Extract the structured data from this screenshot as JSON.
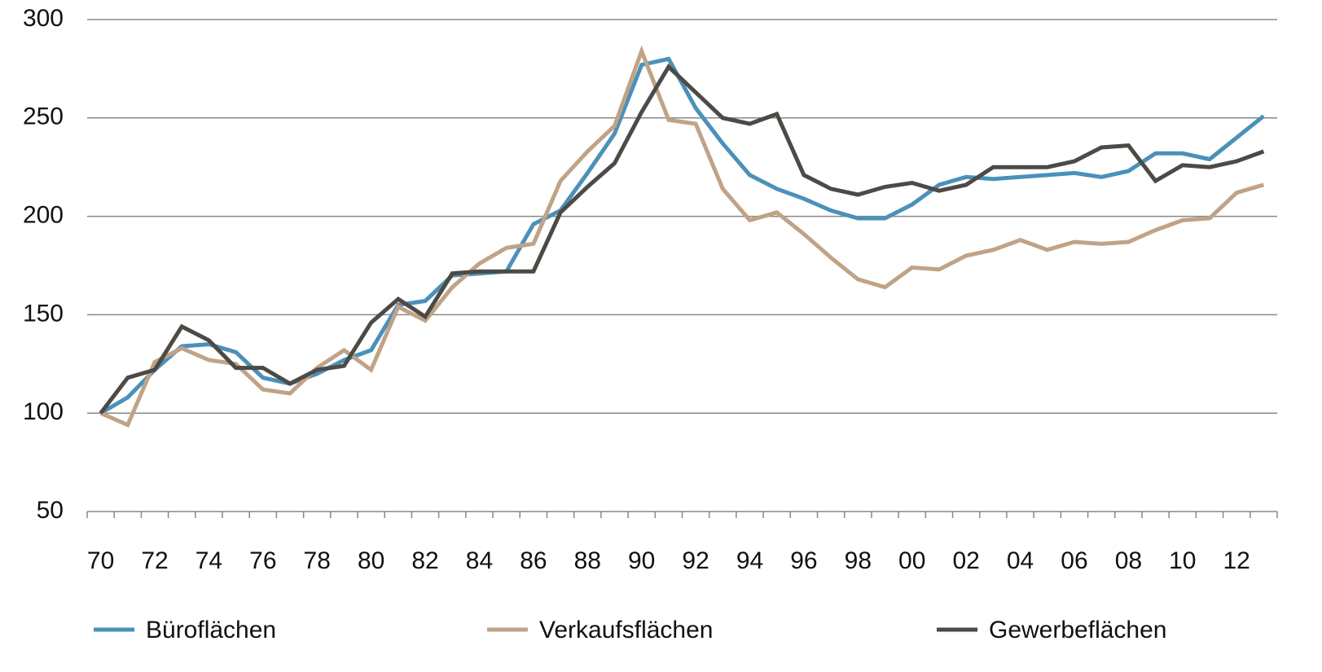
{
  "chart_data": {
    "type": "line",
    "categories": [
      "70",
      null,
      "72",
      null,
      "74",
      null,
      "76",
      null,
      "78",
      null,
      "80",
      null,
      "82",
      null,
      "84",
      null,
      "86",
      null,
      "88",
      null,
      "90",
      null,
      "92",
      null,
      "94",
      null,
      "96",
      null,
      "98",
      null,
      "00",
      null,
      "02",
      null,
      "04",
      null,
      "06",
      null,
      "08",
      null,
      "10",
      null,
      "12",
      null
    ],
    "series": [
      {
        "name": "Büroflächen",
        "color": "#4a91b9",
        "values": [
          100,
          108,
          122,
          134,
          135,
          131,
          118,
          115,
          120,
          127,
          132,
          155,
          157,
          170,
          171,
          172,
          196,
          203,
          222,
          242,
          277,
          280,
          255,
          237,
          221,
          214,
          209,
          203,
          199,
          199,
          206,
          216,
          220,
          219,
          220,
          221,
          222,
          220,
          223,
          232,
          232,
          229,
          240,
          251
        ]
      },
      {
        "name": "Verkaufsflächen",
        "color": "#c0a387",
        "values": [
          100,
          94,
          126,
          133,
          127,
          125,
          112,
          110,
          123,
          132,
          122,
          154,
          147,
          164,
          176,
          184,
          186,
          218,
          233,
          246,
          284,
          249,
          247,
          214,
          198,
          202,
          191,
          179,
          168,
          164,
          174,
          173,
          180,
          183,
          188,
          183,
          187,
          186,
          187,
          193,
          198,
          199,
          212,
          216
        ]
      },
      {
        "name": "Gewerbeflächen",
        "color": "#4d4a45",
        "values": [
          100,
          118,
          122,
          144,
          137,
          123,
          123,
          115,
          122,
          124,
          146,
          158,
          149,
          171,
          172,
          172,
          172,
          202,
          215,
          227,
          253,
          276,
          263,
          250,
          247,
          252,
          221,
          214,
          211,
          215,
          217,
          213,
          216,
          225,
          225,
          225,
          228,
          235,
          236,
          218,
          226,
          225,
          228,
          233
        ]
      }
    ],
    "ylim": [
      50,
      300
    ],
    "yticks": [
      50,
      100,
      150,
      200,
      250,
      300
    ],
    "grid": true,
    "legend": "bottom"
  }
}
